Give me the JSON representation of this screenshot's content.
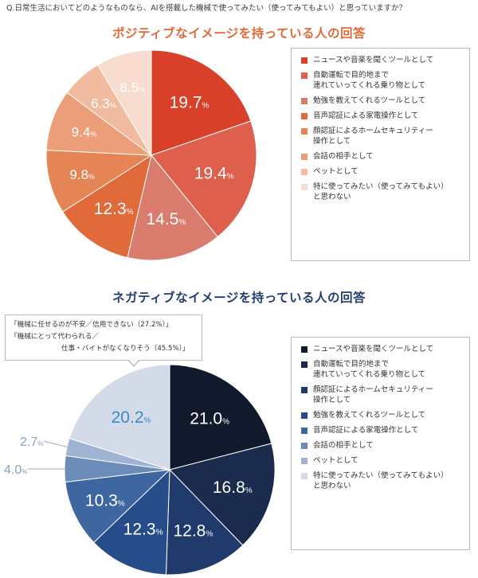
{
  "question": "Q.日常生活においてどのようなものなら、AIを搭載した機械で使ってみたい（使ってみてもよい）と思っていますか？",
  "callout": {
    "line1": "「機械に任せるのが不安／信用できない（27.2%）」",
    "line2": "「機械にとって代わられる／",
    "line3": "仕事・バイトがなくなりそう（45.5%）」"
  },
  "chart_data": [
    {
      "type": "pie",
      "title": "ポジティブなイメージを持っている人の回答",
      "unit": "%",
      "label_color": "#ffffff",
      "slices": [
        {
          "label": "ニュースや音楽を聞くツールとして",
          "value": 19.7,
          "display": "19.7",
          "color": "#d9402a"
        },
        {
          "label": "自動運転で目的地まで\n連れていってくれる乗り物として",
          "value": 19.4,
          "display": "19.4",
          "color": "#de5f4c"
        },
        {
          "label": "勉強を教えてくれるツールとして",
          "value": 14.5,
          "display": "14.5",
          "color": "#d97c6d"
        },
        {
          "label": "音声認証による家電操作として",
          "value": 12.3,
          "display": "12.3",
          "color": "#e06a3a"
        },
        {
          "label": "顔認証によるホームセキュリティー\n操作として",
          "value": 9.8,
          "display": "9.8",
          "color": "#e58555"
        },
        {
          "label": "会話の相手として",
          "value": 9.4,
          "display": "9.4",
          "color": "#eb9e78"
        },
        {
          "label": "ペットとして",
          "value": 6.3,
          "display": "6.3",
          "color": "#f1bba0"
        },
        {
          "label": "特に使ってみたい（使ってみてもよい）\nと思わない",
          "value": 8.5,
          "display": "8.5",
          "color": "#f7dccf"
        }
      ]
    },
    {
      "type": "pie",
      "title": "ネガティブなイメージを持っている人の回答",
      "unit": "%",
      "label_color": "#ffffff",
      "slices": [
        {
          "label": "ニュースや音楽を聞くツールとして",
          "value": 21.0,
          "display": "21.0",
          "color": "#111a2c"
        },
        {
          "label": "自動運転で目的地まで\n連れていってくれる乗り物として",
          "value": 16.8,
          "display": "16.8",
          "color": "#1a2b4d"
        },
        {
          "label": "顔認証によるホームセキュリティー\n操作として",
          "value": 12.8,
          "display": "12.8",
          "color": "#203a6b"
        },
        {
          "label": "勉強を教えてくれるツールとして",
          "value": 12.3,
          "display": "12.3",
          "color": "#264d8a"
        },
        {
          "label": "音声認証による家電操作として",
          "value": 10.3,
          "display": "10.3",
          "color": "#3e66a0"
        },
        {
          "label": "会話の相手として",
          "value": 4.0,
          "display": "4.0",
          "color": "#6b8bb8"
        },
        {
          "label": "ペットとして",
          "value": 2.7,
          "display": "2.7",
          "color": "#9fb4d3"
        },
        {
          "label": "特に使ってみたい（使ってみてもよい）\nと思わない",
          "value": 20.2,
          "display": "20.2",
          "color": "#d3dbe8"
        }
      ]
    }
  ]
}
